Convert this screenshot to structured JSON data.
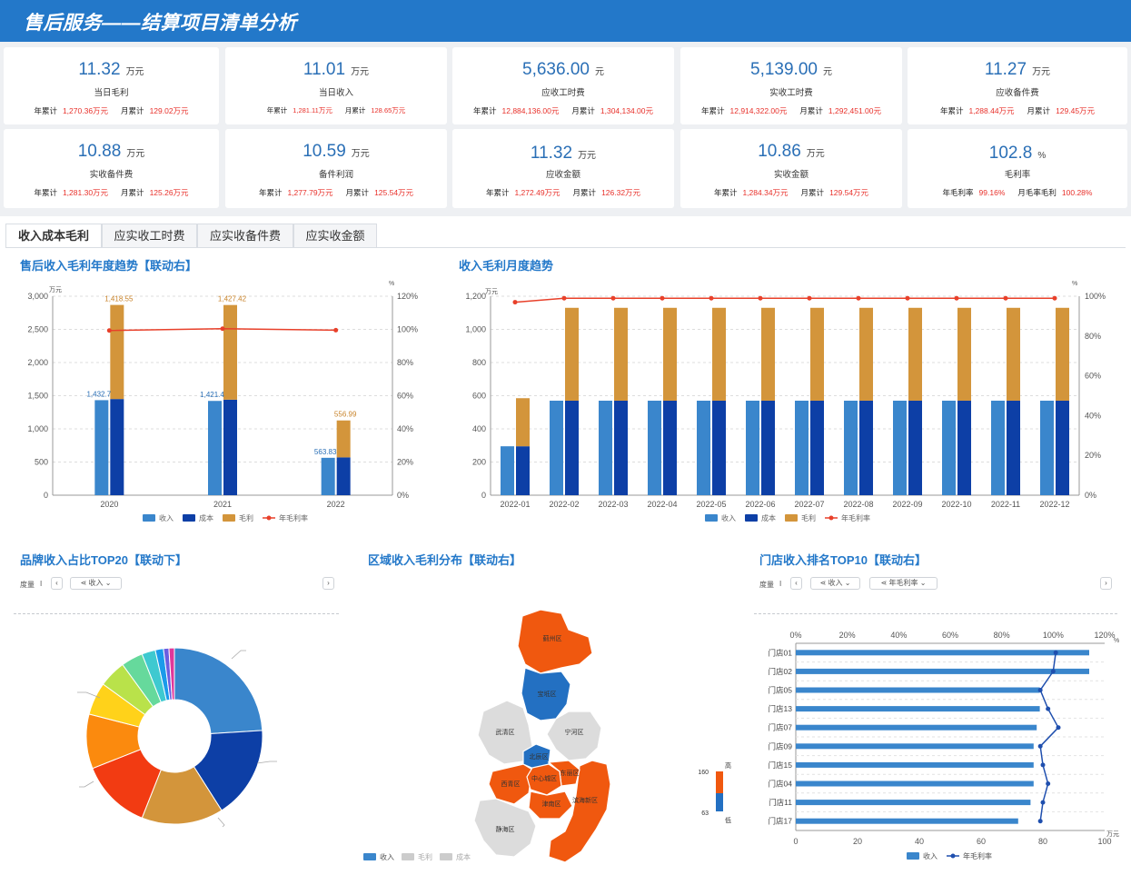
{
  "header": {
    "title": "售后服务——结算项目清单分析"
  },
  "kpis": [
    {
      "value": "11.32",
      "unit": "万元",
      "label": "当日毛利",
      "y_label": "年累计",
      "y_val": "1,270.36万元",
      "m_label": "月累计",
      "m_val": "129.02万元"
    },
    {
      "value": "11.01",
      "unit": "万元",
      "label": "当日收入",
      "y_label": "年累计",
      "y_val": "1,281.11万元",
      "m_label": "月累计",
      "m_val": "128.65万元"
    },
    {
      "value": "5,636.00",
      "unit": "元",
      "label": "应收工时费",
      "y_label": "年累计",
      "y_val": "12,884,136.00元",
      "m_label": "月累计",
      "m_val": "1,304,134.00元"
    },
    {
      "value": "5,139.00",
      "unit": "元",
      "label": "实收工时费",
      "y_label": "年累计",
      "y_val": "12,914,322.00元",
      "m_label": "月累计",
      "m_val": "1,292,451.00元"
    },
    {
      "value": "11.27",
      "unit": "万元",
      "label": "应收备件费",
      "y_label": "年累计",
      "y_val": "1,288.44万元",
      "m_label": "月累计",
      "m_val": "129.45万元"
    },
    {
      "value": "10.88",
      "unit": "万元",
      "label": "实收备件费",
      "y_label": "年累计",
      "y_val": "1,281.30万元",
      "m_label": "月累计",
      "m_val": "125.26万元"
    },
    {
      "value": "10.59",
      "unit": "万元",
      "label": "备件利润",
      "y_label": "年累计",
      "y_val": "1,277.79万元",
      "m_label": "月累计",
      "m_val": "125.54万元"
    },
    {
      "value": "11.32",
      "unit": "万元",
      "label": "应收金额",
      "y_label": "年累计",
      "y_val": "1,272.49万元",
      "m_label": "月累计",
      "m_val": "126.32万元"
    },
    {
      "value": "10.86",
      "unit": "万元",
      "label": "实收金额",
      "y_label": "年累计",
      "y_val": "1,284.34万元",
      "m_label": "月累计",
      "m_val": "129.54万元"
    },
    {
      "value": "102.8",
      "unit": "%",
      "label": "毛利率",
      "y_label": "年毛利率",
      "y_val": "99.16%",
      "m_label": "月毛率毛利",
      "m_val": "100.28%"
    }
  ],
  "tabs": [
    "收入成本毛利",
    "应实收工时费",
    "应实收备件费",
    "应实收金额"
  ],
  "sections": {
    "yearly": "售后收入毛利年度趋势【联动右】",
    "monthly": "收入毛利月度趋势",
    "brand": "品牌收入占比TOP20【联动下】",
    "region": "区域收入毛利分布【联动右】",
    "store": "门店收入排名TOP10【联动右】"
  },
  "controls": {
    "measure_label": "度量",
    "measure_sep": "I",
    "brand_measure": "收入",
    "store_measure1": "收入",
    "store_measure2": "年毛利率"
  },
  "colors": {
    "income": "#3a86cc",
    "cost": "#0d3fa6",
    "profit": "#d3953b",
    "margin_line": "#e8402a",
    "header": "#2378c9"
  },
  "chart_data": [
    {
      "type": "bar",
      "title": "售后收入毛利年度趋势【联动右】",
      "categories": [
        "2020",
        "2021",
        "2022"
      ],
      "series": [
        {
          "name": "收入",
          "values": [
            1432.7,
            1421.4,
            563.83
          ]
        },
        {
          "name": "成本",
          "values": [
            1450,
            1440,
            570
          ]
        },
        {
          "name": "毛利",
          "values": [
            1418.55,
            1427.42,
            556.99
          ]
        },
        {
          "name": "年毛利率",
          "values": [
            99.3,
            100.4,
            99.5
          ]
        }
      ],
      "data_labels": {
        "income": [
          "1,432.7",
          "1,421.4",
          "563.83"
        ],
        "profit": [
          "1,418.55",
          "1,427.42",
          "556.99"
        ]
      },
      "yunit_left": "万元",
      "yunit_right": "%",
      "yticks": [
        "0",
        "500",
        "1,000",
        "1,500",
        "2,000",
        "2,500",
        "3,000"
      ],
      "y2ticks": [
        "0%",
        "20%",
        "40%",
        "60%",
        "80%",
        "100%",
        "120%"
      ],
      "ylim": [
        0,
        3000
      ],
      "y2lim": [
        0,
        120
      ],
      "legend": [
        "收入",
        "成本",
        "毛利",
        "年毛利率"
      ],
      "grid": true,
      "legend_position": "bottom"
    },
    {
      "type": "bar",
      "title": "收入毛利月度趋势",
      "categories": [
        "2022-01",
        "2022-02",
        "2022-03",
        "2022-04",
        "2022-05",
        "2022-06",
        "2022-07",
        "2022-08",
        "2022-09",
        "2022-10",
        "2022-11",
        "2022-12"
      ],
      "series": [
        {
          "name": "收入",
          "values": [
            295,
            570,
            570,
            570,
            570,
            570,
            570,
            570,
            570,
            570,
            570,
            570
          ]
        },
        {
          "name": "成本",
          "values": [
            295,
            570,
            570,
            570,
            570,
            570,
            570,
            570,
            570,
            570,
            570,
            570
          ]
        },
        {
          "name": "毛利",
          "values": [
            290,
            560,
            560,
            560,
            560,
            560,
            560,
            560,
            560,
            560,
            560,
            560
          ]
        },
        {
          "name": "年毛利率",
          "values": [
            97,
            99,
            99,
            99,
            99,
            99,
            99,
            99,
            99,
            99,
            99,
            99
          ]
        }
      ],
      "yunit_left": "万元",
      "yunit_right": "%",
      "yticks": [
        "0",
        "200",
        "400",
        "600",
        "800",
        "1,000",
        "1,200"
      ],
      "y2ticks": [
        "0%",
        "20%",
        "40%",
        "60%",
        "80%",
        "100%"
      ],
      "ylim": [
        0,
        1200
      ],
      "y2lim": [
        0,
        100
      ],
      "legend": [
        "收入",
        "成本",
        "毛利",
        "年毛利率"
      ],
      "grid": true,
      "legend_position": "bottom"
    },
    {
      "type": "pie",
      "title": "品牌收入占比TOP20【联动下】",
      "values": [
        24,
        17,
        15,
        13,
        10,
        6,
        5,
        4,
        2.5,
        1.5,
        1,
        1
      ],
      "colors": [
        "#3a86cc",
        "#0d3fa6",
        "#d3953b",
        "#f23b12",
        "#fb8a0e",
        "#ffd21a",
        "#b9e24a",
        "#66d99c",
        "#3ec9d0",
        "#1a9bea",
        "#6a5ee0",
        "#e0379a"
      ]
    },
    {
      "type": "heatmap",
      "title": "区域收入毛利分布【联动右】",
      "regions": [
        {
          "name": "蓟州区",
          "level": "high"
        },
        {
          "name": "宝坻区",
          "level": "mid"
        },
        {
          "name": "武清区",
          "level": "none"
        },
        {
          "name": "宁河区",
          "level": "none"
        },
        {
          "name": "滨海新区",
          "level": "high"
        },
        {
          "name": "静海区",
          "level": "none"
        },
        {
          "name": "西青区",
          "level": "high"
        },
        {
          "name": "津南区",
          "level": "high"
        },
        {
          "name": "北辰区",
          "level": "mid"
        },
        {
          "name": "东丽区",
          "level": "high"
        },
        {
          "name": "中心城区",
          "level": "high"
        }
      ],
      "visual_map": {
        "max": "160",
        "min": "63",
        "high_label": "高",
        "low_label": "低"
      },
      "legend": [
        "收入",
        "毛利",
        "成本"
      ]
    },
    {
      "type": "bar",
      "title": "门店收入排名TOP10【联动右】",
      "categories": [
        "门店01",
        "门店02",
        "门店05",
        "门店13",
        "门店07",
        "门店09",
        "门店15",
        "门店04",
        "门店11",
        "门店17"
      ],
      "series": [
        {
          "name": "收入",
          "values": [
            95,
            95,
            79,
            79,
            78,
            77,
            77,
            77,
            76,
            72
          ]
        },
        {
          "name": "年毛利率",
          "values": [
            101,
            100,
            95,
            98,
            102,
            95,
            96,
            98,
            96,
            95
          ]
        }
      ],
      "xticks": [
        "0",
        "20",
        "40",
        "60",
        "80",
        "100"
      ],
      "xunit": "万元",
      "x2ticks": [
        "0%",
        "20%",
        "40%",
        "60%",
        "80%",
        "100%",
        "120%"
      ],
      "x2unit": "%",
      "xlim": [
        0,
        100
      ],
      "x2lim": [
        0,
        120
      ],
      "legend": [
        "收入",
        "年毛利率"
      ],
      "grid": true,
      "legend_position": "bottom"
    }
  ]
}
